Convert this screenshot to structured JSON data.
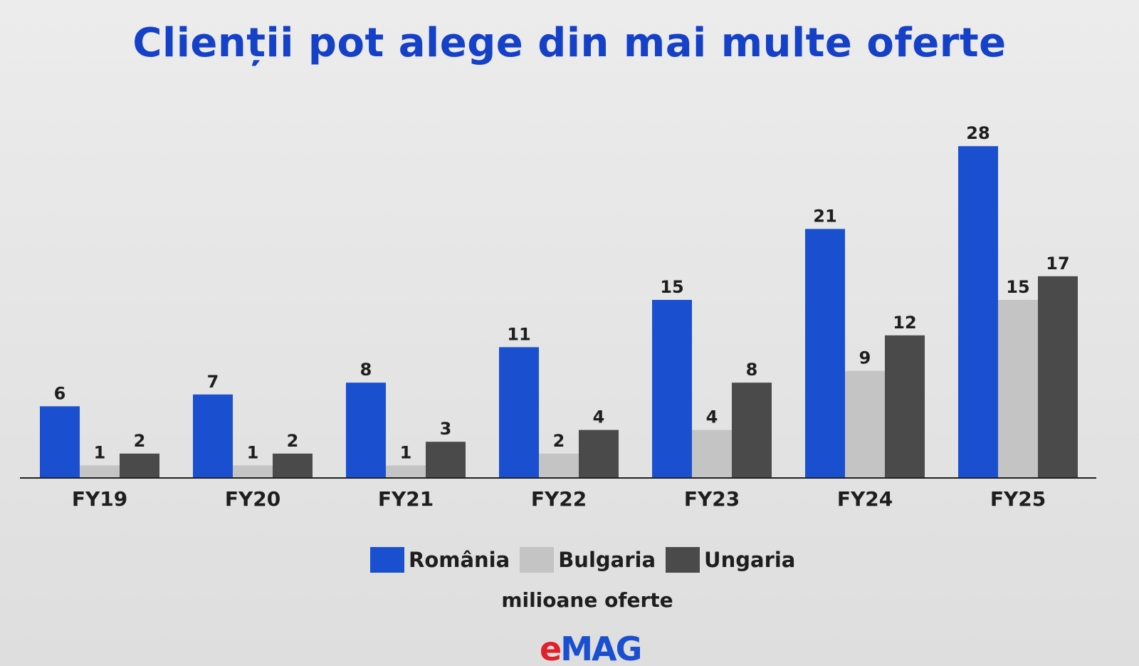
{
  "colors": {
    "title": "#1540c8",
    "romania": "#1a4fd0",
    "bulgaria": "#c4c4c4",
    "ungaria": "#4a4a4a",
    "axis": "#222222",
    "text": "#1e1e1e",
    "logo_e": "#e0202a",
    "logo_mag": "#1a4fd0"
  },
  "logo": {
    "e": "e",
    "mag": "MAG"
  },
  "chart_data": {
    "type": "bar",
    "title": "Clienții pot alege din mai multe oferte",
    "subtitle": "milioane oferte",
    "categories": [
      "FY19",
      "FY20",
      "FY21",
      "FY22",
      "FY23",
      "FY24",
      "FY25"
    ],
    "series": [
      {
        "name": "România",
        "values": [
          6,
          7,
          8,
          11,
          15,
          21,
          28
        ]
      },
      {
        "name": "Bulgaria",
        "values": [
          1,
          1,
          1,
          2,
          4,
          9,
          15
        ]
      },
      {
        "name": "Ungaria",
        "values": [
          2,
          2,
          3,
          4,
          8,
          12,
          17
        ]
      }
    ],
    "data_labels": true,
    "grid": false,
    "legend_position": "bottom"
  }
}
